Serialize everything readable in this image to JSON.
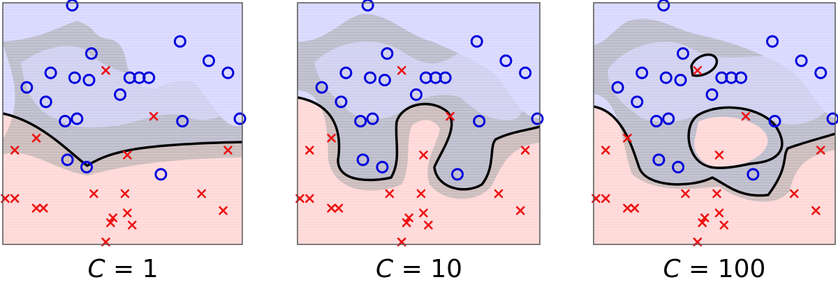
{
  "chart_data": [
    {
      "type": "scatter",
      "title": "C = 1",
      "caption_var": "C",
      "caption_value": "1",
      "xlim": [
        0,
        1
      ],
      "ylim": [
        0,
        1
      ],
      "grid": false,
      "colors": {
        "positive": "#0000dd",
        "negative": "#ee1111",
        "pos_region": "#d8d8ff",
        "neg_region": "#ffd8d8",
        "margin": "#aaaaaa",
        "boundary": "#000000"
      },
      "series": [
        {
          "name": "",
          "marker": "circle",
          "points": [
            [
              0.29,
              0.99
            ],
            [
              0.1,
              0.65
            ],
            [
              0.18,
              0.59
            ],
            [
              0.2,
              0.71
            ],
            [
              0.3,
              0.69
            ],
            [
              0.36,
              0.68
            ],
            [
              0.37,
              0.79
            ],
            [
              0.49,
              0.62
            ],
            [
              0.53,
              0.69
            ],
            [
              0.57,
              0.69
            ],
            [
              0.61,
              0.69
            ],
            [
              0.74,
              0.84
            ],
            [
              0.86,
              0.76
            ],
            [
              0.94,
              0.71
            ],
            [
              0.26,
              0.51
            ],
            [
              0.31,
              0.52
            ],
            [
              0.75,
              0.51
            ],
            [
              0.99,
              0.52
            ],
            [
              0.27,
              0.35
            ],
            [
              0.35,
              0.32
            ],
            [
              0.66,
              0.29
            ]
          ]
        },
        {
          "name": "",
          "marker": "x",
          "points": [
            [
              0.43,
              0.72
            ],
            [
              0.63,
              0.53
            ],
            [
              0.14,
              0.44
            ],
            [
              0.05,
              0.39
            ],
            [
              0.52,
              0.37
            ],
            [
              0.94,
              0.39
            ],
            [
              0.01,
              0.19
            ],
            [
              0.05,
              0.19
            ],
            [
              0.14,
              0.15
            ],
            [
              0.17,
              0.15
            ],
            [
              0.38,
              0.21
            ],
            [
              0.51,
              0.21
            ],
            [
              0.83,
              0.21
            ],
            [
              0.52,
              0.13
            ],
            [
              0.92,
              0.14
            ],
            [
              0.46,
              0.11
            ],
            [
              0.45,
              0.09
            ],
            [
              0.54,
              0.08
            ],
            [
              0.43,
              0.01
            ]
          ]
        }
      ]
    },
    {
      "type": "scatter",
      "title": "C = 10",
      "caption_var": "C",
      "caption_value": "10",
      "xlim": [
        0,
        1
      ],
      "ylim": [
        0,
        1
      ],
      "grid": false,
      "colors": {
        "positive": "#0000dd",
        "negative": "#ee1111",
        "pos_region": "#d8d8ff",
        "neg_region": "#ffd8d8",
        "margin": "#aaaaaa",
        "boundary": "#000000"
      },
      "series": [
        {
          "name": "",
          "marker": "circle",
          "points": [
            [
              0.29,
              0.99
            ],
            [
              0.1,
              0.65
            ],
            [
              0.18,
              0.59
            ],
            [
              0.2,
              0.71
            ],
            [
              0.3,
              0.69
            ],
            [
              0.36,
              0.68
            ],
            [
              0.37,
              0.79
            ],
            [
              0.49,
              0.62
            ],
            [
              0.53,
              0.69
            ],
            [
              0.57,
              0.69
            ],
            [
              0.61,
              0.69
            ],
            [
              0.74,
              0.84
            ],
            [
              0.86,
              0.76
            ],
            [
              0.94,
              0.71
            ],
            [
              0.26,
              0.51
            ],
            [
              0.31,
              0.52
            ],
            [
              0.75,
              0.51
            ],
            [
              0.99,
              0.52
            ],
            [
              0.27,
              0.35
            ],
            [
              0.35,
              0.32
            ],
            [
              0.66,
              0.29
            ]
          ]
        },
        {
          "name": "",
          "marker": "x",
          "points": [
            [
              0.43,
              0.72
            ],
            [
              0.63,
              0.53
            ],
            [
              0.14,
              0.44
            ],
            [
              0.05,
              0.39
            ],
            [
              0.52,
              0.37
            ],
            [
              0.94,
              0.39
            ],
            [
              0.01,
              0.19
            ],
            [
              0.05,
              0.19
            ],
            [
              0.14,
              0.15
            ],
            [
              0.17,
              0.15
            ],
            [
              0.38,
              0.21
            ],
            [
              0.51,
              0.21
            ],
            [
              0.83,
              0.21
            ],
            [
              0.52,
              0.13
            ],
            [
              0.92,
              0.14
            ],
            [
              0.46,
              0.11
            ],
            [
              0.45,
              0.09
            ],
            [
              0.54,
              0.08
            ],
            [
              0.43,
              0.01
            ]
          ]
        }
      ]
    },
    {
      "type": "scatter",
      "title": "C = 100",
      "caption_var": "C",
      "caption_value": "100",
      "xlim": [
        0,
        1
      ],
      "ylim": [
        0,
        1
      ],
      "grid": false,
      "colors": {
        "positive": "#0000dd",
        "negative": "#ee1111",
        "pos_region": "#d8d8ff",
        "neg_region": "#ffd8d8",
        "margin": "#aaaaaa",
        "boundary": "#000000"
      },
      "series": [
        {
          "name": "",
          "marker": "circle",
          "points": [
            [
              0.29,
              0.99
            ],
            [
              0.1,
              0.65
            ],
            [
              0.18,
              0.59
            ],
            [
              0.2,
              0.71
            ],
            [
              0.3,
              0.69
            ],
            [
              0.36,
              0.68
            ],
            [
              0.37,
              0.79
            ],
            [
              0.49,
              0.62
            ],
            [
              0.53,
              0.69
            ],
            [
              0.57,
              0.69
            ],
            [
              0.61,
              0.69
            ],
            [
              0.74,
              0.84
            ],
            [
              0.86,
              0.76
            ],
            [
              0.94,
              0.71
            ],
            [
              0.26,
              0.51
            ],
            [
              0.31,
              0.52
            ],
            [
              0.75,
              0.51
            ],
            [
              0.99,
              0.52
            ],
            [
              0.27,
              0.35
            ],
            [
              0.35,
              0.32
            ],
            [
              0.66,
              0.29
            ]
          ]
        },
        {
          "name": "",
          "marker": "x",
          "points": [
            [
              0.43,
              0.72
            ],
            [
              0.63,
              0.53
            ],
            [
              0.14,
              0.44
            ],
            [
              0.05,
              0.39
            ],
            [
              0.52,
              0.37
            ],
            [
              0.94,
              0.39
            ],
            [
              0.01,
              0.19
            ],
            [
              0.05,
              0.19
            ],
            [
              0.14,
              0.15
            ],
            [
              0.17,
              0.15
            ],
            [
              0.38,
              0.21
            ],
            [
              0.51,
              0.21
            ],
            [
              0.83,
              0.21
            ],
            [
              0.52,
              0.13
            ],
            [
              0.92,
              0.14
            ],
            [
              0.46,
              0.11
            ],
            [
              0.45,
              0.09
            ],
            [
              0.54,
              0.08
            ],
            [
              0.43,
              0.01
            ]
          ]
        }
      ]
    }
  ]
}
